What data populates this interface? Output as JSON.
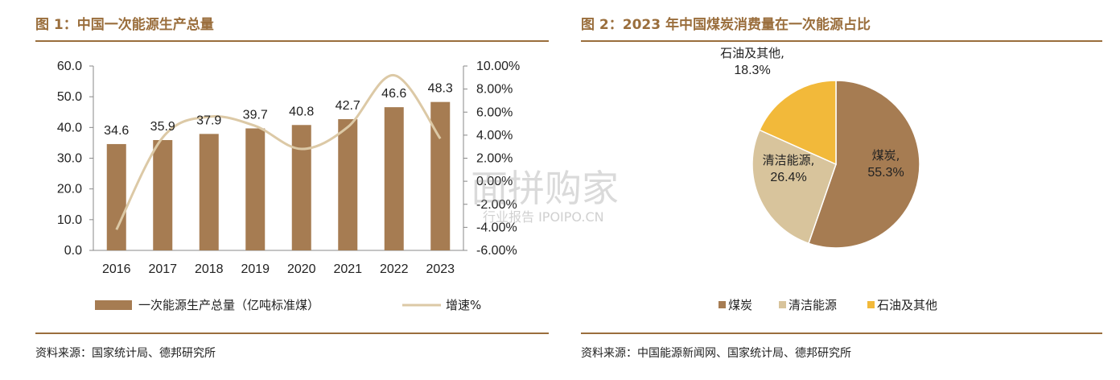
{
  "figure1": {
    "title": "图 1：中国一次能源生产总量",
    "source": "资料来源：国家统计局、德邦研究所"
  },
  "figure2": {
    "title": "图 2：2023 年中国煤炭消费量在一次能源占比",
    "source": "资料来源：中国能源新闻网、国家统计局、德邦研究所"
  },
  "watermark": {
    "main": "面拼购家",
    "sub": "行业报告 IPOIPO.CN"
  },
  "colors": {
    "bar": "#a67c52",
    "line": "#dcc9a6",
    "coal": "#a67c52",
    "clean": "#d8c49c",
    "oil": "#f2b93a",
    "title": "#9a6e3c"
  },
  "chart_data": [
    {
      "type": "bar",
      "categories": [
        "2016",
        "2017",
        "2018",
        "2019",
        "2020",
        "2021",
        "2022",
        "2023"
      ],
      "series": [
        {
          "name": "一次能源生产总量（亿吨标准煤）",
          "type": "bar",
          "axis": "left",
          "values": [
            34.6,
            35.9,
            37.9,
            39.7,
            40.8,
            42.7,
            46.6,
            48.3
          ]
        },
        {
          "name": "增速%",
          "type": "line",
          "axis": "right",
          "values": [
            -4.2,
            3.8,
            5.6,
            4.8,
            2.8,
            4.7,
            9.2,
            3.7
          ]
        }
      ],
      "data_labels": [
        "34.6",
        "35.9",
        "37.9",
        "39.7",
        "40.8",
        "42.7",
        "46.6",
        "48.3"
      ],
      "ylim": [
        0,
        60
      ],
      "yticks": [
        "0.0",
        "10.0",
        "20.0",
        "30.0",
        "40.0",
        "50.0",
        "60.0"
      ],
      "y2lim": [
        -6,
        10
      ],
      "y2ticks": [
        "-6.00%",
        "-4.00%",
        "-2.00%",
        "0.00%",
        "2.00%",
        "4.00%",
        "6.00%",
        "8.00%",
        "10.00%"
      ],
      "legend_position": "bottom"
    },
    {
      "type": "pie",
      "slices": [
        {
          "name": "煤炭",
          "value": 55.3,
          "label_name": "煤炭,",
          "label_value": "55.3%"
        },
        {
          "name": "清洁能源",
          "value": 26.4,
          "label_name": "清洁能源,",
          "label_value": "26.4%"
        },
        {
          "name": "石油及其他",
          "value": 18.3,
          "label_name": "石油及其他,",
          "label_value": "18.3%"
        }
      ],
      "legend_position": "bottom"
    }
  ]
}
